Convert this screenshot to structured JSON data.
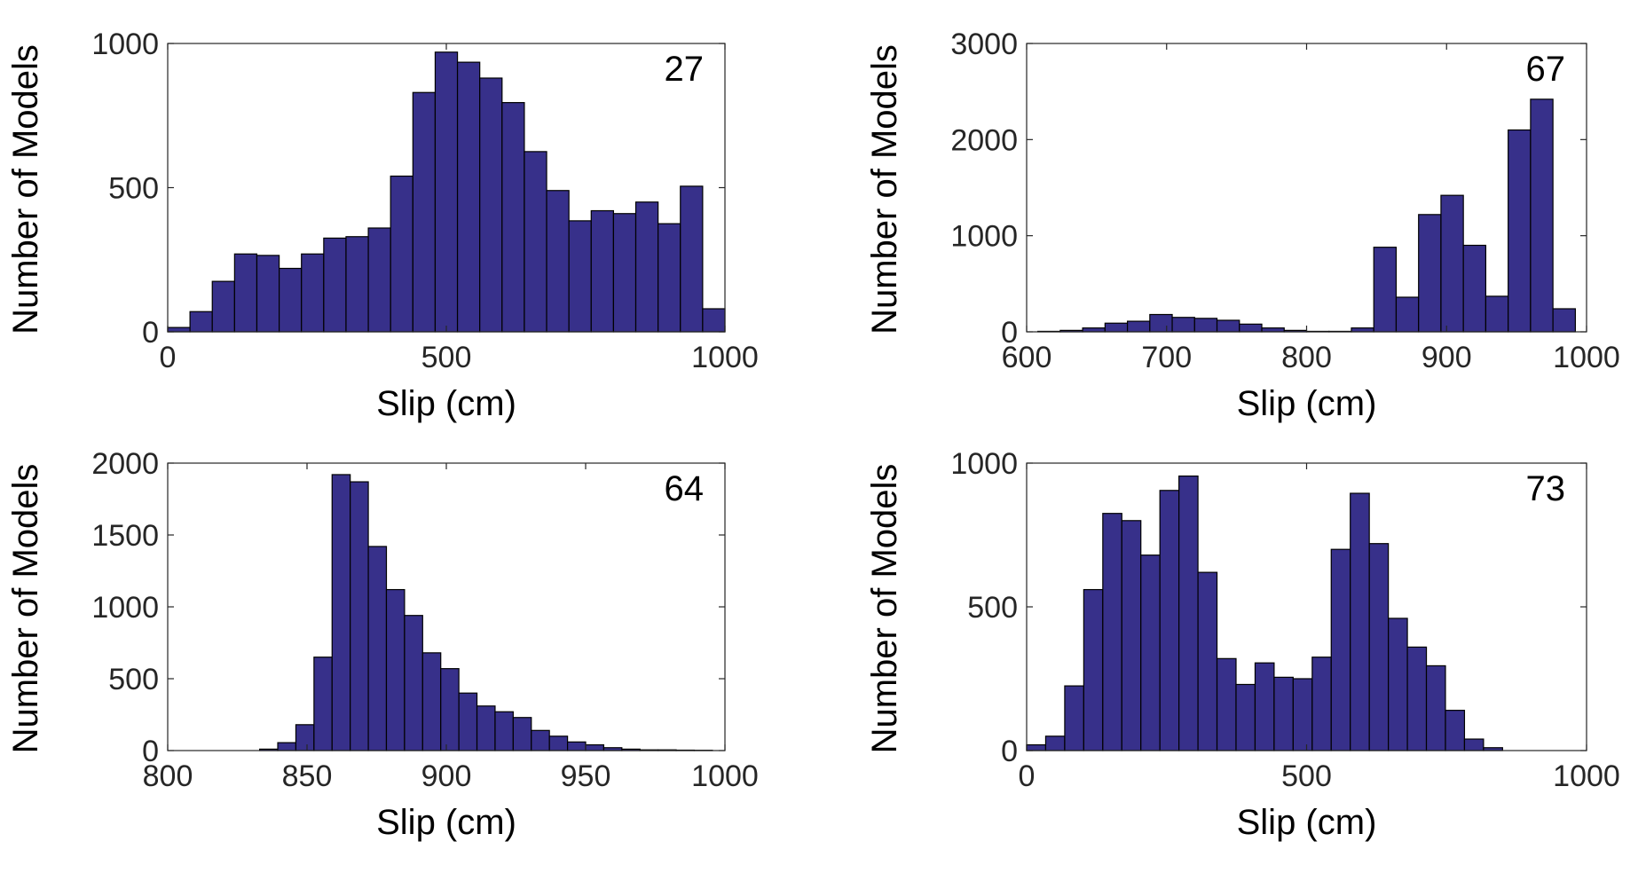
{
  "colors": {
    "bar_fill": "#37308a",
    "bar_edge": "#000000",
    "axis": "#262626"
  },
  "chart_data": [
    {
      "type": "bar",
      "annotation": "27",
      "xlabel": "Slip (cm)",
      "ylabel": "Number of Models",
      "xlim": [
        0,
        1000
      ],
      "ylim": [
        0,
        1000
      ],
      "xticks": [
        0,
        500,
        1000
      ],
      "yticks": [
        0,
        500,
        1000
      ],
      "bin_width": 40,
      "x": [
        20,
        60,
        100,
        140,
        180,
        220,
        260,
        300,
        340,
        380,
        420,
        460,
        500,
        540,
        580,
        620,
        660,
        700,
        740,
        780,
        820,
        860,
        900,
        940,
        980
      ],
      "values": [
        15,
        70,
        175,
        270,
        265,
        220,
        270,
        325,
        330,
        360,
        540,
        830,
        970,
        935,
        880,
        795,
        625,
        490,
        385,
        420,
        410,
        450,
        375,
        505,
        80
      ]
    },
    {
      "type": "bar",
      "annotation": "67",
      "xlabel": "Slip (cm)",
      "ylabel": "Number of Models",
      "xlim": [
        600,
        1000
      ],
      "ylim": [
        0,
        3000
      ],
      "xticks": [
        600,
        700,
        800,
        900,
        1000
      ],
      "yticks": [
        0,
        1000,
        2000,
        3000
      ],
      "bin_width": 16,
      "x": [
        616,
        632,
        648,
        664,
        680,
        696,
        712,
        728,
        744,
        760,
        776,
        792,
        808,
        824,
        840,
        856,
        872,
        888,
        904,
        920,
        936,
        952,
        968,
        984
      ],
      "values": [
        5,
        15,
        40,
        90,
        110,
        180,
        150,
        140,
        120,
        80,
        40,
        15,
        5,
        5,
        40,
        880,
        360,
        1220,
        1420,
        900,
        370,
        2100,
        2420,
        240
      ]
    },
    {
      "type": "bar",
      "annotation": "64",
      "xlabel": "Slip (cm)",
      "ylabel": "Number of Models",
      "xlim": [
        800,
        1000
      ],
      "ylim": [
        0,
        2000
      ],
      "xticks": [
        800,
        850,
        900,
        950,
        1000
      ],
      "yticks": [
        0,
        500,
        1000,
        1500,
        2000
      ],
      "bin_width": 6.5,
      "x": [
        836.25,
        842.75,
        849.25,
        855.75,
        862.25,
        868.75,
        875.25,
        881.75,
        888.25,
        894.75,
        901.25,
        907.75,
        914.25,
        920.75,
        927.25,
        933.75,
        940.25,
        946.75,
        953.25,
        959.75,
        966.25,
        972.75,
        979.25,
        985.75,
        992.25
      ],
      "values": [
        10,
        55,
        180,
        650,
        1920,
        1870,
        1420,
        1120,
        940,
        680,
        570,
        400,
        310,
        270,
        230,
        140,
        100,
        60,
        40,
        20,
        10,
        5,
        5,
        3,
        2
      ]
    },
    {
      "type": "bar",
      "annotation": "73",
      "xlabel": "Slip (cm)",
      "ylabel": "Number of Models",
      "xlim": [
        0,
        1000
      ],
      "ylim": [
        0,
        1000
      ],
      "xticks": [
        0,
        500,
        1000
      ],
      "yticks": [
        0,
        500,
        1000
      ],
      "bin_width": 34,
      "x": [
        17,
        51,
        85,
        119,
        153,
        187,
        221,
        255,
        289,
        323,
        357,
        391,
        425,
        459,
        493,
        527,
        561,
        595,
        629,
        663,
        697,
        731,
        765,
        799,
        833
      ],
      "values": [
        20,
        50,
        225,
        560,
        825,
        800,
        680,
        905,
        955,
        620,
        320,
        230,
        305,
        255,
        250,
        325,
        700,
        895,
        720,
        460,
        360,
        295,
        140,
        40,
        10
      ]
    }
  ]
}
